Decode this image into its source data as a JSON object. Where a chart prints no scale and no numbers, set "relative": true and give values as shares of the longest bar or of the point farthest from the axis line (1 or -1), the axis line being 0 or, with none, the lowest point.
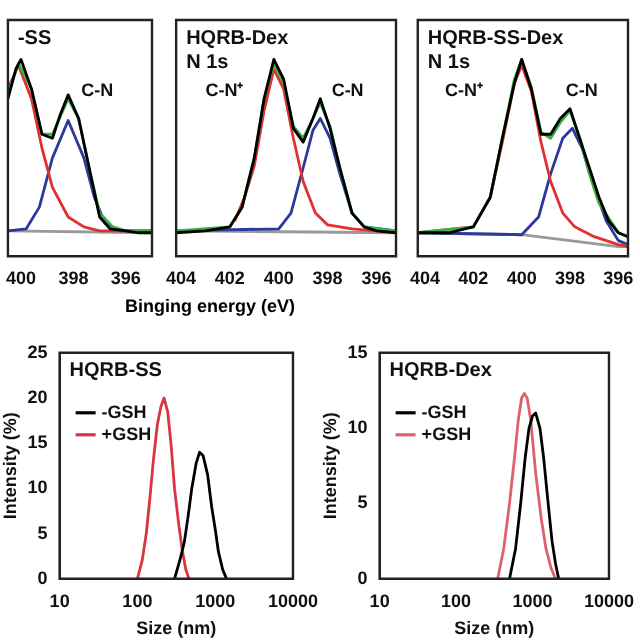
{
  "chart_data": [
    {
      "type": "line",
      "title": "-SS",
      "relative": true,
      "xlim": [
        400.5,
        395
      ],
      "xticks": [
        400,
        398,
        396
      ],
      "tick_labels": "x",
      "grid": false,
      "marker": "none",
      "legend": false,
      "annotations": [
        "C-N"
      ],
      "series": [
        {
          "color": "#000000",
          "x": [
            400.5,
            400.2,
            400.0,
            399.6,
            399.2,
            398.8,
            398.5,
            398.2,
            397.8,
            397.4,
            397.0,
            396.6,
            396.0,
            395.5,
            395.0
          ],
          "values": [
            0.8,
            0.95,
            1.0,
            0.85,
            0.62,
            0.6,
            0.72,
            0.82,
            0.7,
            0.45,
            0.2,
            0.14,
            0.13,
            0.12,
            0.12
          ]
        },
        {
          "color": "#3cb043",
          "x": [
            400.5,
            400.1,
            399.6,
            399.2,
            398.8,
            398.2,
            397.8,
            397.4,
            397.0,
            396.5,
            396.0,
            395.0
          ],
          "values": [
            0.82,
            0.98,
            0.85,
            0.62,
            0.62,
            0.8,
            0.7,
            0.45,
            0.22,
            0.15,
            0.13,
            0.13
          ]
        },
        {
          "color": "#e03030",
          "x": [
            400.5,
            400.1,
            399.6,
            399.2,
            398.8,
            398.2,
            397.6,
            397.0,
            396.0,
            395.0
          ],
          "values": [
            0.85,
            0.97,
            0.8,
            0.55,
            0.35,
            0.2,
            0.15,
            0.13,
            0.13,
            0.13
          ]
        },
        {
          "color": "#2b3a9a",
          "x": [
            400.5,
            399.8,
            399.3,
            398.8,
            398.2,
            397.6,
            397.2,
            396.8,
            396.2,
            395.0
          ],
          "values": [
            0.13,
            0.14,
            0.25,
            0.5,
            0.69,
            0.5,
            0.3,
            0.17,
            0.13,
            0.13
          ]
        },
        {
          "color": "#999999",
          "x": [
            400.5,
            395.0
          ],
          "values": [
            0.13,
            0.12
          ]
        }
      ]
    },
    {
      "type": "line",
      "title": "HQRB-Dex",
      "subtitle": "N 1s",
      "xlabel": "Binging energy (eV)",
      "relative": true,
      "xlim": [
        404.2,
        395.2
      ],
      "xticks": [
        404,
        402,
        400,
        398,
        396
      ],
      "tick_labels": "x",
      "grid": false,
      "marker": "none",
      "legend": false,
      "annotations": [
        "C-N⁺",
        "C-N"
      ],
      "series": [
        {
          "color": "#000000",
          "x": [
            404.2,
            403.0,
            402.0,
            401.5,
            401.0,
            400.6,
            400.2,
            399.8,
            399.4,
            399.0,
            398.6,
            398.3,
            397.9,
            397.5,
            397.0,
            396.5,
            396.0,
            395.2
          ],
          "values": [
            0.12,
            0.13,
            0.15,
            0.25,
            0.5,
            0.8,
            1.0,
            0.9,
            0.65,
            0.58,
            0.7,
            0.8,
            0.65,
            0.45,
            0.22,
            0.15,
            0.13,
            0.12
          ]
        },
        {
          "color": "#3cb043",
          "x": [
            404.2,
            402.0,
            401.5,
            401.0,
            400.6,
            400.2,
            399.8,
            399.4,
            399.0,
            398.6,
            398.3,
            397.9,
            397.5,
            397.0,
            396.5,
            395.2
          ],
          "values": [
            0.13,
            0.15,
            0.25,
            0.5,
            0.8,
            0.98,
            0.88,
            0.66,
            0.6,
            0.7,
            0.78,
            0.66,
            0.45,
            0.22,
            0.15,
            0.13
          ]
        },
        {
          "color": "#e03030",
          "x": [
            401.8,
            401.4,
            401.0,
            400.6,
            400.2,
            399.8,
            399.4,
            399.0,
            398.5,
            398.0,
            397.0,
            396.0
          ],
          "values": [
            0.18,
            0.3,
            0.46,
            0.74,
            0.95,
            0.85,
            0.6,
            0.38,
            0.22,
            0.16,
            0.14,
            0.13
          ]
        },
        {
          "color": "#2b3a9a",
          "x": [
            404.2,
            400.0,
            399.5,
            399.0,
            398.6,
            398.3,
            397.9,
            397.5,
            397.0,
            396.5,
            395.2
          ],
          "values": [
            0.13,
            0.14,
            0.22,
            0.45,
            0.64,
            0.7,
            0.6,
            0.42,
            0.22,
            0.15,
            0.13
          ]
        },
        {
          "color": "#999999",
          "x": [
            404.2,
            395.2
          ],
          "values": [
            0.13,
            0.12
          ]
        }
      ]
    },
    {
      "type": "line",
      "title": "HQRB-SS-Dex",
      "subtitle": "N 1s",
      "relative": true,
      "xlim": [
        404.3,
        395.6
      ],
      "xticks": [
        404,
        402,
        400,
        398,
        396
      ],
      "tick_labels": "x",
      "grid": false,
      "marker": "none",
      "legend": false,
      "annotations": [
        "C-N⁺",
        "C-N"
      ],
      "series": [
        {
          "color": "#000000",
          "x": [
            404.3,
            403.0,
            402.0,
            401.3,
            400.8,
            400.3,
            400.0,
            399.6,
            399.2,
            398.8,
            398.4,
            398.0,
            397.6,
            397.2,
            396.8,
            396.4,
            396.0,
            395.6
          ],
          "values": [
            0.12,
            0.12,
            0.15,
            0.3,
            0.6,
            0.88,
            1.0,
            0.85,
            0.62,
            0.62,
            0.7,
            0.75,
            0.6,
            0.45,
            0.3,
            0.18,
            0.12,
            0.1
          ]
        },
        {
          "color": "#3cb043",
          "x": [
            404.3,
            402.0,
            401.3,
            400.8,
            400.3,
            400.0,
            399.6,
            399.2,
            398.8,
            398.4,
            398.0,
            397.6,
            397.2,
            396.8,
            396.0,
            395.6
          ],
          "values": [
            0.12,
            0.15,
            0.3,
            0.6,
            0.9,
            1.0,
            0.86,
            0.63,
            0.6,
            0.68,
            0.74,
            0.6,
            0.42,
            0.27,
            0.12,
            0.1
          ]
        },
        {
          "color": "#e03030",
          "x": [
            404.3,
            402.0,
            401.3,
            400.8,
            400.3,
            400.0,
            399.6,
            399.2,
            398.8,
            398.3,
            397.8,
            397.0,
            396.0,
            395.6
          ],
          "values": [
            0.12,
            0.15,
            0.3,
            0.58,
            0.88,
            0.97,
            0.84,
            0.58,
            0.38,
            0.22,
            0.15,
            0.1,
            0.06,
            0.05
          ]
        },
        {
          "color": "#2b3a9a",
          "x": [
            404.3,
            400.0,
            399.3,
            398.8,
            398.3,
            397.9,
            397.5,
            397.0,
            396.5,
            396.0,
            395.6
          ],
          "values": [
            0.12,
            0.11,
            0.2,
            0.42,
            0.6,
            0.65,
            0.55,
            0.35,
            0.18,
            0.08,
            0.06
          ]
        },
        {
          "color": "#999999",
          "x": [
            404.3,
            400.0,
            398.0,
            396.0,
            395.6
          ],
          "values": [
            0.12,
            0.11,
            0.08,
            0.05,
            0.05
          ]
        }
      ]
    },
    {
      "type": "line",
      "title": "HQRB-SS",
      "xlabel": "Size (nm)",
      "ylabel": "Intensity (%)",
      "log": "x",
      "xlim": [
        10,
        10000
      ],
      "xticks": [
        10,
        100,
        1000,
        10000
      ],
      "ylim": [
        0,
        25
      ],
      "yticks": [
        0,
        5,
        10,
        15,
        20,
        25
      ],
      "grid": false,
      "marker": "none",
      "legend": "top left",
      "series": [
        {
          "name": "-GSH",
          "color": "#000000",
          "x": [
            300,
            350,
            400,
            450,
            500,
            570,
            630,
            700,
            800,
            900,
            1000,
            1100,
            1250,
            1400
          ],
          "values": [
            0,
            2,
            4,
            7,
            10,
            12.8,
            14,
            13.6,
            11.5,
            8,
            5.5,
            3,
            1,
            0
          ]
        },
        {
          "name": "+GSH",
          "color": "#d9343f",
          "x": [
            100,
            115,
            130,
            145,
            160,
            180,
            200,
            220,
            245,
            270,
            300,
            340,
            380,
            420,
            460
          ],
          "values": [
            0,
            2,
            5,
            9,
            13,
            17,
            19,
            20,
            18.5,
            15,
            10,
            6,
            3,
            1,
            0
          ]
        }
      ]
    },
    {
      "type": "line",
      "title": "HQRB-Dex",
      "xlabel": "Size (nm)",
      "ylabel": "Intensity (%)",
      "log": "x",
      "xlim": [
        10,
        10000
      ],
      "xticks": [
        10,
        100,
        1000,
        10000
      ],
      "ylim": [
        0,
        15
      ],
      "yticks": [
        0,
        5,
        10,
        15
      ],
      "grid": false,
      "marker": "none",
      "legend": "top left",
      "series": [
        {
          "name": "-GSH",
          "color": "#000000",
          "x": [
            500,
            600,
            700,
            800,
            900,
            1000,
            1100,
            1250,
            1400,
            1600,
            1800,
            2000,
            2200
          ],
          "values": [
            0,
            2,
            5,
            8,
            10,
            10.8,
            11,
            10,
            8,
            5,
            2.5,
            1,
            0
          ]
        },
        {
          "name": "+GSH",
          "color": "#e06070",
          "x": [
            350,
            420,
            500,
            580,
            650,
            720,
            780,
            850,
            950,
            1100,
            1300,
            1500,
            1750,
            2000
          ],
          "values": [
            0,
            2,
            5,
            8,
            10.5,
            12,
            12.3,
            12,
            10.5,
            7,
            4,
            2,
            0.7,
            0
          ]
        }
      ]
    }
  ]
}
